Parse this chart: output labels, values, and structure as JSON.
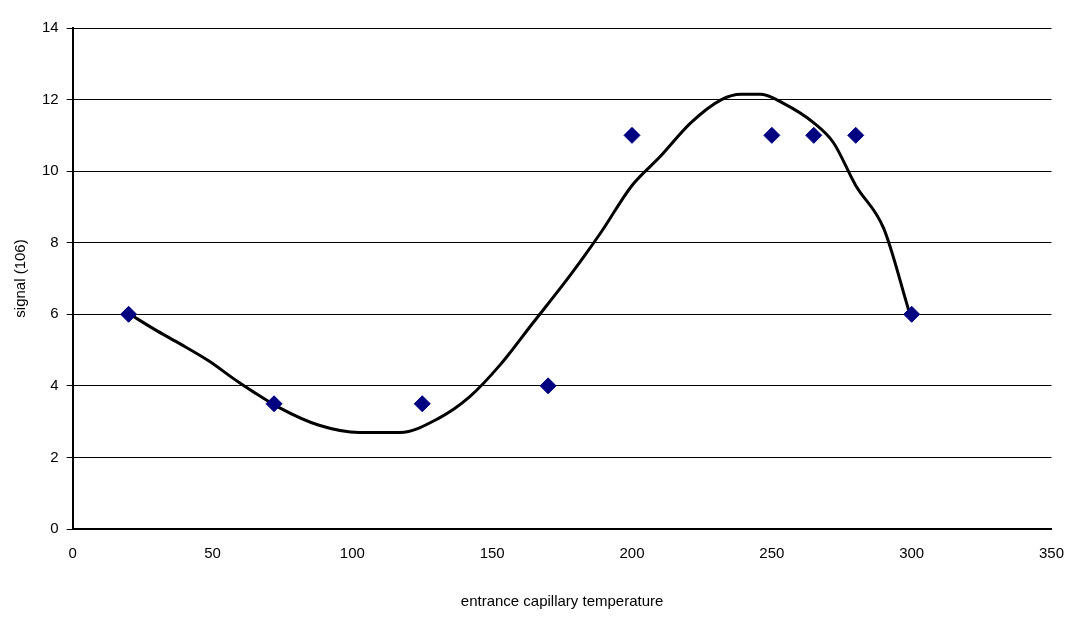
{
  "chart_data": {
    "type": "scatter",
    "xlabel": "entrance capillary temperature",
    "ylabel": "signal (106)",
    "xlim": [
      0,
      350
    ],
    "xticks": [
      0,
      50,
      100,
      150,
      200,
      250,
      300,
      350
    ],
    "ylim": [
      0,
      14
    ],
    "yticks": [
      0,
      2,
      4,
      6,
      8,
      10,
      12,
      14
    ],
    "grid": "y",
    "series": [
      {
        "marker": "diamond",
        "color": "#000080",
        "x": [
          20,
          72,
          125,
          170,
          200,
          250,
          265,
          280,
          300
        ],
        "values": [
          6,
          3.5,
          3.5,
          4,
          11,
          11,
          11,
          11,
          6
        ]
      },
      {
        "type": "line",
        "marker": "none",
        "line_style": "solid",
        "color": "#000000",
        "x": [
          20.5,
          28.8,
          37.8,
          48.6,
          59.4,
          73.7,
          88.1,
          102.5,
          117,
          131,
          142,
          153,
          164,
          178,
          189,
          200,
          210,
          221,
          232,
          239,
          246,
          254,
          265,
          272,
          280,
          290,
          299
        ],
        "values": [
          6,
          5.6,
          5.2,
          4.7,
          4.1,
          3.4,
          2.9,
          2.7,
          2.7,
          3.1,
          3.7,
          4.6,
          5.7,
          7.1,
          8.3,
          9.6,
          10.4,
          11.35,
          12,
          12.15,
          12.15,
          11.9,
          11.35,
          10.8,
          9.6,
          8.4,
          6.1
        ]
      }
    ]
  }
}
